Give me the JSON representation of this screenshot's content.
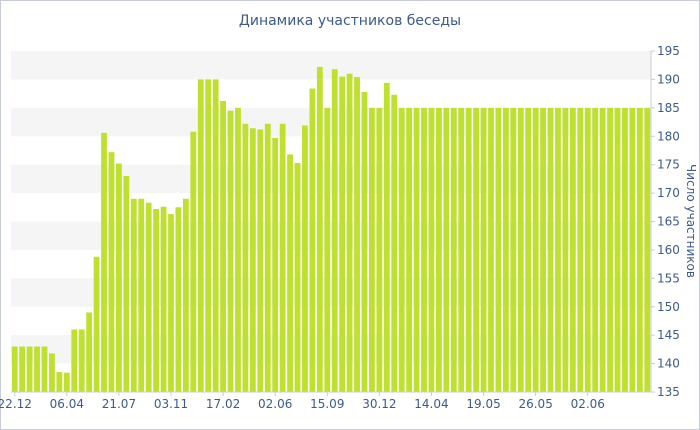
{
  "colors": {
    "bar": "#bfe02e",
    "band": "#f5f5f5",
    "text": "#3d5a8a",
    "axis": "#c7ccd6"
  },
  "chart_data": {
    "type": "bar",
    "title": "Динамика участников беседы",
    "ylabel": "Число участников",
    "xlabel": "",
    "ylim": [
      135,
      195
    ],
    "y_ticks": [
      135,
      140,
      145,
      150,
      155,
      160,
      165,
      170,
      175,
      180,
      185,
      190,
      195
    ],
    "y_axis_position": "right",
    "grid": "alternating horizontal bands",
    "x_ticks": [
      {
        "index": 0,
        "label": "22.12"
      },
      {
        "index": 7,
        "label": "06.04"
      },
      {
        "index": 14,
        "label": "21.07"
      },
      {
        "index": 21,
        "label": "03.11"
      },
      {
        "index": 28,
        "label": "17.02"
      },
      {
        "index": 35,
        "label": "02.06"
      },
      {
        "index": 42,
        "label": "15.09"
      },
      {
        "index": 49,
        "label": "30.12"
      },
      {
        "index": 56,
        "label": "14.04"
      },
      {
        "index": 63,
        "label": "19.05"
      },
      {
        "index": 70,
        "label": "26.05"
      },
      {
        "index": 77,
        "label": "02.06"
      }
    ],
    "values": [
      143,
      143,
      143,
      143,
      143,
      141.8,
      138.5,
      138.4,
      146,
      146,
      149,
      158.8,
      180.6,
      177.2,
      175.2,
      173,
      169,
      169,
      168.3,
      167.2,
      167.6,
      166.3,
      167.5,
      169,
      180.8,
      190,
      190,
      190,
      186.2,
      184.5,
      185,
      182.2,
      181.4,
      181.2,
      182.2,
      179.7,
      182.2,
      176.8,
      175.3,
      181.9,
      188.4,
      192.2,
      185,
      191.8,
      190.5,
      191,
      190.4,
      187.8,
      185,
      185,
      189.4,
      187.3,
      185,
      185,
      185,
      185,
      185,
      185,
      185,
      185,
      185,
      185,
      185,
      185,
      185,
      185,
      185,
      185,
      185,
      185,
      185,
      185,
      185,
      185,
      185,
      185,
      185,
      185,
      185,
      185,
      185,
      185,
      185,
      185,
      185,
      185
    ]
  }
}
